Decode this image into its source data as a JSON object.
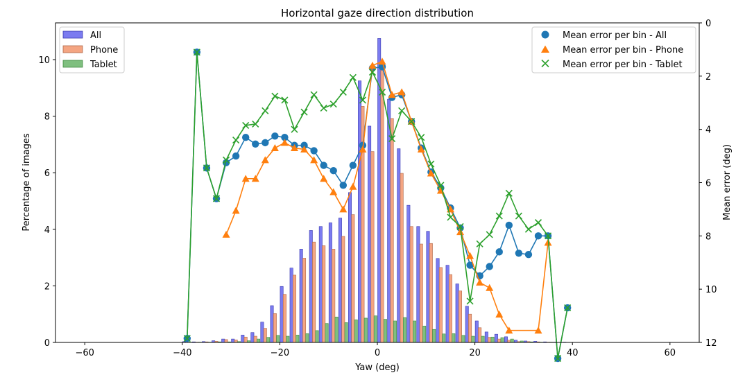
{
  "chart_data": {
    "type": "bar",
    "title": "Horizontal gaze direction distribution",
    "xlabel": "Yaw (deg)",
    "ylabel": "Percentage of images",
    "y2label": "Mean error (deg)",
    "xlim": [
      -66,
      66
    ],
    "ylim": [
      0,
      11.3
    ],
    "y2lim": [
      12,
      0
    ],
    "y2_inverted": true,
    "xticks": [
      "−60",
      "−40",
      "−20",
      "0",
      "20",
      "40",
      "60"
    ],
    "yticks": [
      "0",
      "2",
      "4",
      "6",
      "8",
      "10"
    ],
    "y2ticks": [
      "0",
      "2",
      "4",
      "6",
      "8",
      "10",
      "12"
    ],
    "bin_centers": [
      -39,
      -37,
      -35,
      -33,
      -31,
      -29,
      -27,
      -25,
      -23,
      -21,
      -19,
      -17,
      -15,
      -13,
      -11,
      -9,
      -7,
      -5,
      -3,
      -1,
      1,
      3,
      5,
      7,
      9,
      11,
      13,
      15,
      17,
      19,
      21,
      23,
      25,
      27,
      29,
      31,
      33,
      35,
      37,
      39
    ],
    "bar_series": [
      {
        "name": "All",
        "color": "#7b7bf0",
        "values": [
          0.03,
          0.02,
          0.03,
          0.06,
          0.12,
          0.12,
          0.26,
          0.35,
          0.72,
          1.3,
          1.98,
          2.63,
          3.3,
          3.96,
          4.1,
          4.23,
          4.4,
          5.3,
          9.25,
          7.65,
          10.75,
          8.6,
          6.85,
          4.85,
          4.1,
          3.93,
          2.97,
          2.73,
          2.07,
          1.28,
          0.76,
          0.37,
          0.29,
          0.2,
          0.08,
          0.05,
          0.04,
          0.02,
          0.01,
          0.01
        ]
      },
      {
        "name": "Phone",
        "color": "#f4a582",
        "values": [
          0.0,
          0.01,
          0.02,
          0.04,
          0.1,
          0.09,
          0.19,
          0.22,
          0.5,
          1.02,
          1.7,
          2.38,
          2.98,
          3.55,
          3.42,
          3.3,
          3.75,
          4.52,
          8.35,
          6.75,
          9.95,
          7.92,
          5.98,
          4.1,
          3.48,
          3.5,
          2.65,
          2.4,
          1.82,
          1.0,
          0.52,
          0.18,
          0.12,
          0.08,
          0.03,
          0.03,
          0.02,
          0.01,
          0.0,
          0.0
        ]
      },
      {
        "name": "Tablet",
        "color": "#7fbf7f",
        "values": [
          0.01,
          0.01,
          0.01,
          0.02,
          0.02,
          0.03,
          0.06,
          0.12,
          0.18,
          0.25,
          0.22,
          0.26,
          0.31,
          0.42,
          0.67,
          0.9,
          0.7,
          0.8,
          0.86,
          0.94,
          0.82,
          0.76,
          0.88,
          0.76,
          0.58,
          0.46,
          0.3,
          0.31,
          0.25,
          0.22,
          0.22,
          0.19,
          0.17,
          0.12,
          0.05,
          0.02,
          0.01,
          0.01,
          0.0,
          0.0
        ]
      }
    ],
    "line_series": [
      {
        "name": "Mean error per bin - All",
        "marker": "circle",
        "color": "#1f77b4",
        "x": [
          -39,
          -37,
          -35,
          -33,
          -31,
          -29,
          -27,
          -25,
          -23,
          -21,
          -19,
          -17,
          -15,
          -13,
          -11,
          -9,
          -7,
          -5,
          -3,
          -1,
          1,
          3,
          5,
          7,
          9,
          11,
          13,
          15,
          17,
          19,
          21,
          23,
          25,
          27,
          29,
          31,
          33,
          35,
          37,
          39
        ],
        "y": [
          11.85,
          1.1,
          5.45,
          6.6,
          5.25,
          5.0,
          4.3,
          4.55,
          4.5,
          4.25,
          4.3,
          4.6,
          4.6,
          4.8,
          5.35,
          5.55,
          6.1,
          5.35,
          4.6,
          1.7,
          1.65,
          2.8,
          2.7,
          3.7,
          4.7,
          5.6,
          6.2,
          6.95,
          7.7,
          9.1,
          9.5,
          9.15,
          8.6,
          7.6,
          8.65,
          8.7,
          8.0,
          8.0,
          12.6,
          10.7
        ]
      },
      {
        "name": "Mean error per bin - Phone",
        "marker": "triangle",
        "color": "#ff7f0e",
        "x": [
          -31,
          -29,
          -27,
          -25,
          -23,
          -21,
          -19,
          -17,
          -15,
          -13,
          -11,
          -9,
          -7,
          -5,
          -3,
          -1,
          1,
          3,
          5,
          7,
          9,
          11,
          13,
          15,
          17,
          19,
          21,
          23,
          25,
          27,
          33,
          35
        ],
        "y": [
          7.95,
          7.05,
          5.85,
          5.85,
          5.15,
          4.7,
          4.5,
          4.7,
          4.75,
          5.15,
          5.85,
          6.35,
          7.0,
          6.15,
          4.75,
          1.6,
          1.45,
          2.7,
          2.6,
          3.7,
          4.75,
          5.65,
          6.3,
          7.0,
          7.85,
          8.75,
          9.75,
          9.95,
          10.95,
          11.55,
          11.55,
          8.25
        ]
      },
      {
        "name": "Mean error per bin - Tablet",
        "marker": "x",
        "color": "#2ca02c",
        "x": [
          -39,
          -37,
          -35,
          -33,
          -31,
          -29,
          -27,
          -25,
          -23,
          -21,
          -19,
          -17,
          -15,
          -13,
          -11,
          -9,
          -7,
          -5,
          -3,
          -1,
          1,
          3,
          5,
          7,
          9,
          11,
          13,
          15,
          17,
          19,
          21,
          23,
          25,
          27,
          29,
          31,
          33,
          35,
          37,
          39
        ],
        "y": [
          11.85,
          1.1,
          5.45,
          6.6,
          5.15,
          4.4,
          3.85,
          3.8,
          3.3,
          2.75,
          2.9,
          4.0,
          3.35,
          2.7,
          3.2,
          3.05,
          2.6,
          2.05,
          2.9,
          1.85,
          2.6,
          4.35,
          3.3,
          3.7,
          4.3,
          5.3,
          6.1,
          7.3,
          7.65,
          10.45,
          8.3,
          7.95,
          7.25,
          6.4,
          7.25,
          7.75,
          7.5,
          8.0,
          12.6,
          10.7
        ]
      }
    ],
    "legend_left": [
      "All",
      "Phone",
      "Tablet"
    ],
    "legend_right": [
      "Mean error per bin - All",
      "Mean error per bin - Phone",
      "Mean error per bin - Tablet"
    ],
    "legend_left_position": "upper left",
    "legend_right_position": "upper right",
    "grid": false
  }
}
